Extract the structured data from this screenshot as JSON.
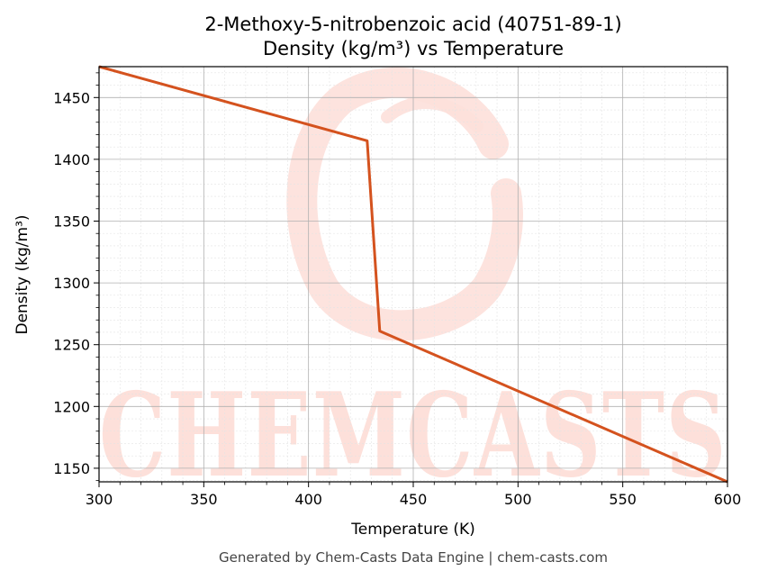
{
  "chart_data": {
    "type": "line",
    "title": "2-Methoxy-5-nitrobenzoic acid (40751-89-1)",
    "subtitle": "Density (kg/m³) vs Temperature",
    "xlabel": "Temperature (K)",
    "ylabel": "Density (kg/m³)",
    "xlim": [
      300,
      600
    ],
    "ylim": [
      1139,
      1475
    ],
    "x_ticks": [
      300,
      350,
      400,
      450,
      500,
      550,
      600
    ],
    "y_ticks": [
      1150,
      1200,
      1250,
      1300,
      1350,
      1400,
      1450
    ],
    "grid": true,
    "series": [
      {
        "color": "#d4521e",
        "x": [
          300,
          428,
          434,
          600
        ],
        "y": [
          1475,
          1415,
          1261,
          1139
        ]
      }
    ]
  },
  "watermark": {
    "text": "CHEMCASTS",
    "color": "#fde0da"
  },
  "footer": "Generated by Chem-Casts Data Engine | chem-casts.com"
}
